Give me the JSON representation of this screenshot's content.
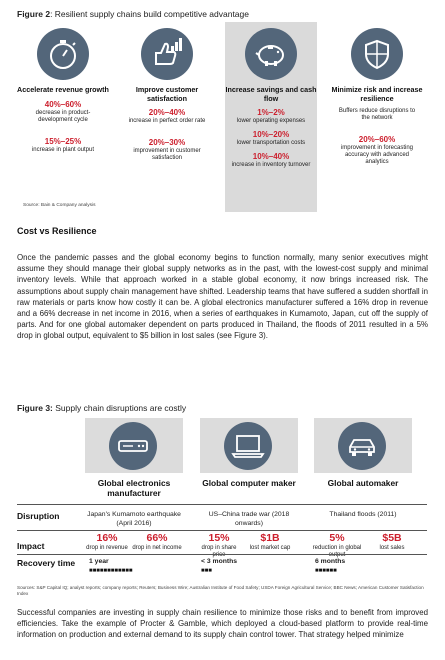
{
  "figure2": {
    "label": "Figure 2",
    "caption": ": Resilient supply chains build competitive advantage",
    "columns": [
      {
        "title": "Accelerate revenue growth",
        "icon": "stopwatch-icon",
        "stats": [
          {
            "value": "40%–60%",
            "desc": "decrease in product-development cycle"
          },
          {
            "value": "15%–25%",
            "desc": "increase in plant output"
          }
        ]
      },
      {
        "title": "Improve customer satisfaction",
        "icon": "thumbs-up-chart-icon",
        "stats": [
          {
            "value": "20%–40%",
            "desc": "increase in perfect order rate"
          },
          {
            "value": "20%–30%",
            "desc": "improvement in customer satisfaction"
          }
        ]
      },
      {
        "title": "Increase savings and cash flow",
        "icon": "piggy-bank-icon",
        "stats": [
          {
            "value": "1%–2%",
            "desc": "lower operating expenses"
          },
          {
            "value": "10%–20%",
            "desc": "lower transportation costs"
          },
          {
            "value": "10%–40%",
            "desc": "increase in inventory turnover"
          }
        ]
      },
      {
        "title": "Minimize risk and increase resilience",
        "icon": "shield-icon",
        "lead": "Buffers reduce disruptions to the network",
        "stats": [
          {
            "value": "20%–60%",
            "desc": "improvement in forecasting accuracy with advanced analytics"
          }
        ]
      }
    ],
    "source": "Source: Bain & Company analysis"
  },
  "section_title": "Cost vs Resilience",
  "paragraph1": "Once the pandemic passes and the global economy begins to function normally, many senior executives might assume they should manage their global supply networks as in the past, with the lowest-cost supply and minimal inventory levels. While that approach worked in a stable global economy, it now brings increased risk. The assumptions about supply chain management have shifted. Leadership teams that have suffered a sudden shortfall in raw materials or parts know how costly it can be. A global electronics manufacturer suffered a 16% drop in revenue and a 66% decrease in net income in 2016, when a series of earthquakes in Kumamoto, Japan, cut off the supply of parts. And for one global automaker dependent on parts produced in Thailand, the floods of 2011 resulted in a 5% drop in global output, equivalent to $5 billion in lost sales (see Figure 3).",
  "figure3": {
    "label": "Figure 3:",
    "caption": " Supply chain disruptions are costly",
    "row_labels": {
      "disruption": "Disruption",
      "impact": "Impact",
      "recovery": "Recovery time"
    },
    "companies": [
      {
        "name": "Global electronics manufacturer",
        "icon": "electronics-device-icon",
        "disruption": "Japan's Kumamoto earthquake (April 2016)",
        "impacts": [
          {
            "value": "16%",
            "desc": "drop in revenue"
          },
          {
            "value": "66%",
            "desc": "drop in net income"
          }
        ],
        "recovery": "1 year",
        "recovery_bar": "■■■■■■■■■■■■"
      },
      {
        "name": "Global computer maker",
        "icon": "laptop-icon",
        "disruption": "US–China trade war (2018 onwards)",
        "impacts": [
          {
            "value": "15%",
            "desc": "drop in share price"
          },
          {
            "value": "$1B",
            "desc": "lost market cap"
          }
        ],
        "recovery": "< 3 months",
        "recovery_bar": "■■■"
      },
      {
        "name": "Global automaker",
        "icon": "car-icon",
        "disruption": "Thailand floods (2011)",
        "impacts": [
          {
            "value": "5%",
            "desc": "reduction in global output"
          },
          {
            "value": "$5B",
            "desc": "lost sales"
          }
        ],
        "recovery": "6 months",
        "recovery_bar": "■■■■■■"
      }
    ],
    "source": "Sources: S&P Capital IQ; analyst reports; company reports; Reuters; Business Wire; Australian Institute of Food Safety; USDA Foreign Agricultural Service; BBC News; American Customer Satisfaction Index"
  },
  "paragraph2": "Successful companies are investing in supply chain resilience to minimize those risks and to benefit from improved efficiencies. Take the example of Procter & Gamble, which deployed a cloud-based platform to provide real-time information on production and external demand to its supply chain control tower. That strategy helped minimize",
  "colors": {
    "accent_red": "#cc1f2d",
    "icon_slate": "#53667a",
    "panel_gray": "#dadada"
  }
}
